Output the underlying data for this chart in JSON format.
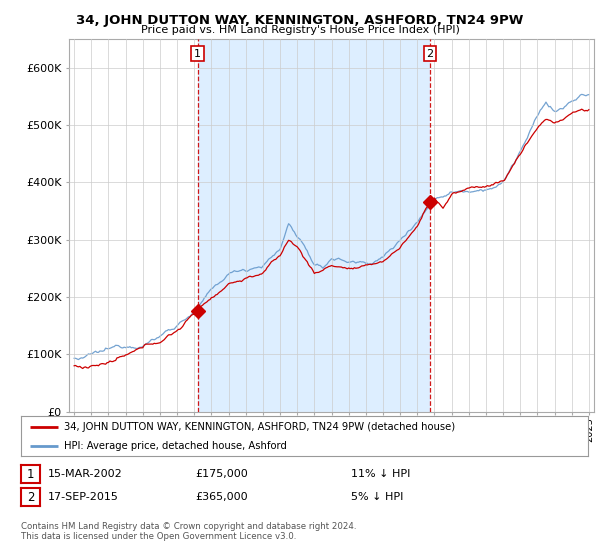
{
  "title": "34, JOHN DUTTON WAY, KENNINGTON, ASHFORD, TN24 9PW",
  "subtitle": "Price paid vs. HM Land Registry's House Price Index (HPI)",
  "legend_label_red": "34, JOHN DUTTON WAY, KENNINGTON, ASHFORD, TN24 9PW (detached house)",
  "legend_label_blue": "HPI: Average price, detached house, Ashford",
  "transaction1_date": "15-MAR-2002",
  "transaction1_price": "£175,000",
  "transaction1_hpi": "11% ↓ HPI",
  "transaction2_date": "17-SEP-2015",
  "transaction2_price": "£365,000",
  "transaction2_hpi": "5% ↓ HPI",
  "footer": "Contains HM Land Registry data © Crown copyright and database right 2024.\nThis data is licensed under the Open Government Licence v3.0.",
  "vline1_x": 2002.2,
  "vline2_x": 2015.75,
  "marker1_y": 175000,
  "marker2_y": 365000,
  "ylim": [
    0,
    650000
  ],
  "yticks": [
    0,
    100000,
    200000,
    300000,
    400000,
    500000,
    600000
  ],
  "ytick_labels": [
    "£0",
    "£100K",
    "£200K",
    "£300K",
    "£400K",
    "£500K",
    "£600K"
  ],
  "color_red": "#cc0000",
  "color_blue": "#6699cc",
  "color_vline": "#cc0000",
  "shade_color": "#ddeeff",
  "bg_color": "#ffffff",
  "grid_color": "#cccccc",
  "xlim_min": 1994.7,
  "xlim_max": 2025.3
}
